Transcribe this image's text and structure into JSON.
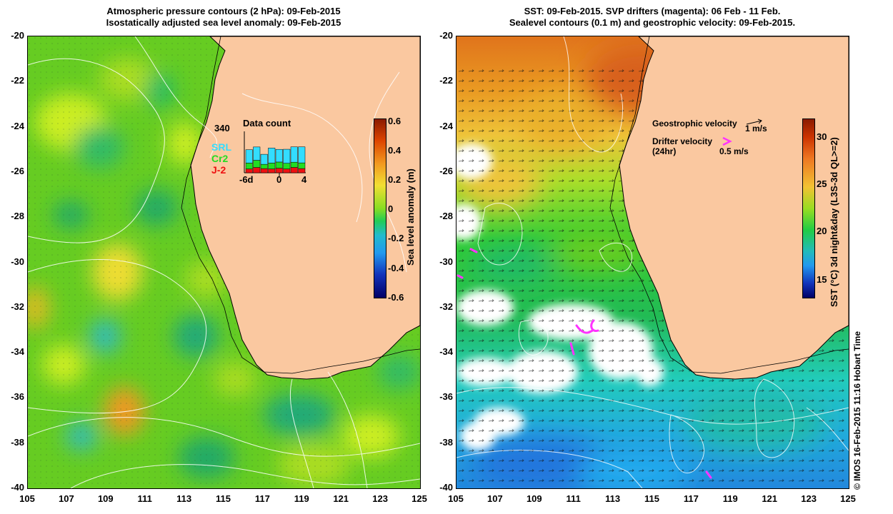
{
  "left_panel": {
    "title_line1": "Atmospheric pressure contours (2 hPa): 09-Feb-2015",
    "title_line2": "Isostatically adjusted sea level anomaly: 09-Feb-2015",
    "y_ticks": [
      "-20",
      "-22",
      "-24",
      "-26",
      "-28",
      "-30",
      "-32",
      "-34",
      "-36",
      "-38",
      "-40"
    ],
    "x_ticks": [
      "105",
      "107",
      "109",
      "111",
      "113",
      "115",
      "117",
      "119",
      "121",
      "123",
      "125"
    ],
    "colorbar": {
      "label": "Sea level anomaly (m)",
      "ticks": [
        "0.6",
        "0.4",
        "0.2",
        "0",
        "-0.2",
        "-0.4",
        "-0.6"
      ]
    },
    "inset": {
      "title": "Data count",
      "max_label": "340",
      "x_labels": [
        "-6d",
        "0",
        "4"
      ],
      "legend": [
        {
          "name": "SRL",
          "color": "#33ddff"
        },
        {
          "name": "Cr2",
          "color": "#22dd22"
        },
        {
          "name": "J-2",
          "color": "#ee1111"
        }
      ]
    }
  },
  "right_panel": {
    "title_line1": "SST: 09-Feb-2015. SVP drifters (magenta): 06 Feb - 11 Feb.",
    "title_line2": "Sealevel contours (0.1 m) and geostrophic velocity: 09-Feb-2015.",
    "y_ticks": [
      "-20",
      "-22",
      "-24",
      "-26",
      "-28",
      "-30",
      "-32",
      "-34",
      "-36",
      "-38",
      "-40"
    ],
    "x_ticks": [
      "105",
      "107",
      "109",
      "111",
      "113",
      "115",
      "117",
      "119",
      "121",
      "123",
      "125"
    ],
    "colorbar": {
      "label": "SST (°C) 3d night&day (L3S-3d QL>=2)",
      "ticks": [
        "30",
        "25",
        "20",
        "15"
      ]
    },
    "legend": {
      "geo_label": "Geostrophic velocity",
      "geo_scale": "1 m/s",
      "drifter_label": "Drifter velocity",
      "drifter_sub": "(24hr)",
      "drifter_scale": "0.5 m/s"
    }
  },
  "credit": "© IMOS 16-Feb-2015 11:16 Hobart Time",
  "colors": {
    "land": "#fac8a0",
    "drifter": "#ff33ff"
  }
}
